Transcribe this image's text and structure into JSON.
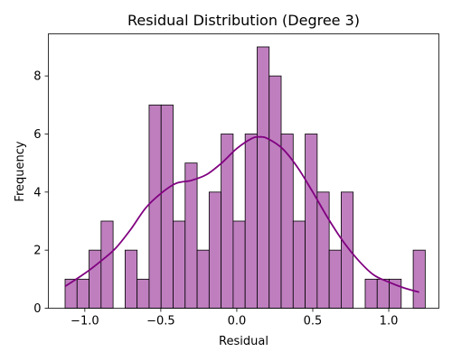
{
  "chart_data": {
    "type": "bar",
    "title": "Residual Distribution (Degree 3)",
    "xlabel": "Residual",
    "ylabel": "Frequency",
    "xlim": [
      -1.24,
      1.33
    ],
    "ylim": [
      0,
      9.45
    ],
    "xticks": [
      -1.0,
      -0.5,
      0.0,
      0.5,
      1.0
    ],
    "xtick_labels": [
      "−1.0",
      "−0.5",
      "0.0",
      "0.5",
      "1.0"
    ],
    "yticks": [
      0,
      2,
      4,
      6,
      8
    ],
    "ytick_labels": [
      "0",
      "2",
      "4",
      "6",
      "8"
    ],
    "bin_edges": [
      -1.13,
      -1.051,
      -0.972,
      -0.893,
      -0.814,
      -0.735,
      -0.656,
      -0.577,
      -0.498,
      -0.419,
      -0.34,
      -0.261,
      -0.182,
      -0.103,
      -0.024,
      0.055,
      0.134,
      0.213,
      0.292,
      0.371,
      0.45,
      0.529,
      0.608,
      0.687,
      0.766,
      0.845,
      0.924,
      1.003,
      1.082,
      1.161,
      1.24
    ],
    "values": [
      1,
      1,
      2,
      3,
      0,
      2,
      1,
      7,
      7,
      3,
      5,
      2,
      4,
      6,
      3,
      6,
      9,
      8,
      6,
      3,
      6,
      4,
      2,
      4,
      0,
      1,
      1,
      1,
      0,
      2
    ],
    "bar_color": "#bf7fbf",
    "edge_color": "#000000",
    "kde": {
      "color": "#800080",
      "x": [
        -1.13,
        -1.0,
        -0.9,
        -0.8,
        -0.7,
        -0.6,
        -0.5,
        -0.4,
        -0.3,
        -0.2,
        -0.1,
        0.0,
        0.1,
        0.15,
        0.2,
        0.3,
        0.4,
        0.5,
        0.6,
        0.7,
        0.8,
        0.9,
        1.0,
        1.1,
        1.2
      ],
      "y": [
        0.75,
        1.2,
        1.6,
        2.05,
        2.7,
        3.45,
        3.95,
        4.3,
        4.4,
        4.6,
        5.0,
        5.5,
        5.85,
        5.9,
        5.85,
        5.5,
        4.85,
        4.0,
        3.1,
        2.3,
        1.65,
        1.15,
        0.9,
        0.7,
        0.55
      ]
    },
    "grid": false
  }
}
